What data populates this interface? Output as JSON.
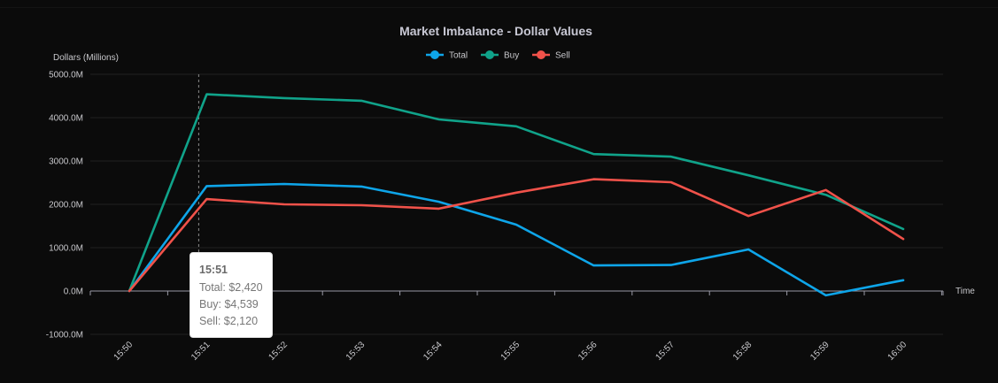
{
  "chart_data": {
    "type": "line",
    "title": "Market Imbalance - Dollar Values",
    "xlabel": "Time",
    "ylabel": "Dollars (Millions)",
    "x": [
      "15:50",
      "15:51",
      "15:52",
      "15:53",
      "15:54",
      "15:55",
      "15:56",
      "15:57",
      "15:58",
      "15:59",
      "16:00"
    ],
    "ylim": [
      -1000,
      5000
    ],
    "yticks": [
      -1000,
      0,
      1000,
      2000,
      3000,
      4000,
      5000
    ],
    "ytick_labels": [
      "-1000.0M",
      "0.0M",
      "1000.0M",
      "2000.0M",
      "3000.0M",
      "4000.0M",
      "5000.0M"
    ],
    "grid": true,
    "legend_position": "top-center",
    "series": [
      {
        "name": "Total",
        "color": "#0ea5e9",
        "values": [
          0,
          2420,
          2470,
          2410,
          2060,
          1530,
          590,
          600,
          960,
          -100,
          250
        ]
      },
      {
        "name": "Buy",
        "color": "#10a38a",
        "values": [
          0,
          4539,
          4450,
          4390,
          3960,
          3800,
          3160,
          3100,
          2670,
          2220,
          1430
        ]
      },
      {
        "name": "Sell",
        "color": "#f0524a",
        "values": [
          0,
          2120,
          2000,
          1980,
          1900,
          2270,
          2580,
          2510,
          1730,
          2330,
          1200
        ]
      }
    ],
    "tooltip": {
      "x": "15:51",
      "title": "15:51",
      "lines": [
        "Total: $2,420",
        "Buy: $4,539",
        "Sell: $2,120"
      ]
    }
  }
}
